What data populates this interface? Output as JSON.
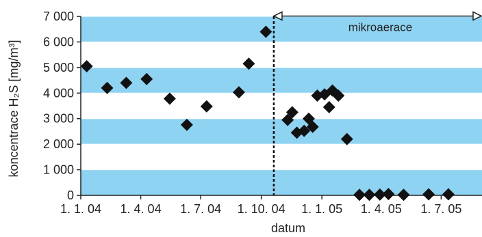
{
  "chart_data": {
    "type": "scatter",
    "xlabel": "datum",
    "ylabel": "koncentrace H₂S [mg/m³]",
    "x_ticks": [
      "1. 1. 04",
      "1. 4. 04",
      "1. 7. 04",
      "1. 10. 04",
      "1. 1. 05",
      "1. 4. 05",
      "1. 7. 05"
    ],
    "y_ticks": [
      "0",
      "1 000",
      "2 000",
      "3 000",
      "4 000",
      "5 000",
      "6 000",
      "7 000"
    ],
    "xlim": [
      "2004-01-01",
      "2005-09-01"
    ],
    "ylim": [
      0,
      7000
    ],
    "band_color": "#8fd3f2",
    "marker": "black-diamond",
    "annotation": {
      "label": "mikroaerace",
      "start": "2004-10-20",
      "end": "2005-09-01",
      "y": 6400,
      "divider": "dashed-vertical-line"
    },
    "points": [
      {
        "x": "2004-01-10",
        "y": 5050
      },
      {
        "x": "2004-02-10",
        "y": 4200
      },
      {
        "x": "2004-03-10",
        "y": 4400
      },
      {
        "x": "2004-04-10",
        "y": 4550
      },
      {
        "x": "2004-05-15",
        "y": 3780
      },
      {
        "x": "2004-06-10",
        "y": 2760
      },
      {
        "x": "2004-07-10",
        "y": 3480
      },
      {
        "x": "2004-08-28",
        "y": 4030
      },
      {
        "x": "2004-09-12",
        "y": 5150
      },
      {
        "x": "2004-10-08",
        "y": 6400
      },
      {
        "x": "2004-11-10",
        "y": 2950
      },
      {
        "x": "2004-11-17",
        "y": 3250
      },
      {
        "x": "2004-11-24",
        "y": 2450
      },
      {
        "x": "2004-12-05",
        "y": 2520
      },
      {
        "x": "2004-12-12",
        "y": 3000
      },
      {
        "x": "2004-12-18",
        "y": 2680
      },
      {
        "x": "2004-12-25",
        "y": 3900
      },
      {
        "x": "2005-01-05",
        "y": 3950
      },
      {
        "x": "2005-01-12",
        "y": 3450
      },
      {
        "x": "2005-01-17",
        "y": 4100
      },
      {
        "x": "2005-01-26",
        "y": 3900
      },
      {
        "x": "2005-02-08",
        "y": 2200
      },
      {
        "x": "2005-02-27",
        "y": 20
      },
      {
        "x": "2005-03-14",
        "y": 20
      },
      {
        "x": "2005-03-30",
        "y": 30
      },
      {
        "x": "2005-04-12",
        "y": 50
      },
      {
        "x": "2005-05-05",
        "y": 20
      },
      {
        "x": "2005-06-12",
        "y": 40
      },
      {
        "x": "2005-07-12",
        "y": 40
      }
    ]
  }
}
